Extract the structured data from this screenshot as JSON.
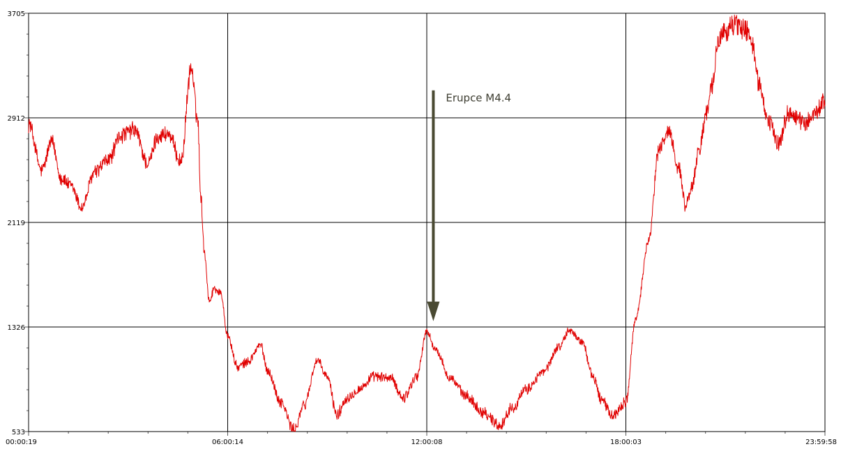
{
  "chart_data": {
    "type": "line",
    "title": "",
    "xlabel": "",
    "ylabel": "",
    "x_tick_labels": [
      "00:00:19",
      "06:00:14",
      "12:00:08",
      "18:00:03",
      "23:59:58"
    ],
    "y_tick_labels": [
      "3705",
      "2912",
      "2119",
      "1326",
      "533"
    ],
    "xlim": [
      0.0056,
      23.9994
    ],
    "ylim": [
      533,
      3705
    ],
    "grid": true,
    "legend": "none",
    "series": [
      {
        "color": "#e00000",
        "x": [
          0.0056,
          0.4,
          0.7,
          1.0,
          1.3,
          1.6,
          2.0,
          2.4,
          2.8,
          3.2,
          3.6,
          3.9,
          4.2,
          4.6,
          4.9,
          5.1,
          5.2,
          5.3,
          5.45,
          5.6,
          5.8,
          6.0,
          6.3,
          6.6,
          7.0,
          7.2,
          7.6,
          8.0,
          8.3,
          8.7,
          9.0,
          9.3,
          9.6,
          10.0,
          10.4,
          10.9,
          11.3,
          11.7,
          12.0,
          12.3,
          12.7,
          13.2,
          13.7,
          14.2,
          14.6,
          15.0,
          15.5,
          16.0,
          16.3,
          16.7,
          17.0,
          17.3,
          17.6,
          18.0,
          18.3,
          18.7,
          19.0,
          19.3,
          19.6,
          19.8,
          20.0,
          20.2,
          20.4,
          20.6,
          20.8,
          21.0,
          21.3,
          21.6,
          21.8,
          22.0,
          22.3,
          22.6,
          22.9,
          23.1,
          23.4,
          23.7,
          23.9994
        ],
        "y": [
          2870,
          2510,
          2730,
          2450,
          2390,
          2230,
          2500,
          2590,
          2780,
          2820,
          2560,
          2770,
          2790,
          2580,
          3290,
          2900,
          2300,
          1900,
          1520,
          1620,
          1580,
          1260,
          1020,
          1060,
          1190,
          1000,
          760,
          540,
          730,
          1070,
          950,
          660,
          790,
          860,
          950,
          940,
          790,
          950,
          1290,
          1140,
          940,
          800,
          680,
          580,
          720,
          850,
          980,
          1180,
          1300,
          1210,
          950,
          760,
          650,
          760,
          1390,
          2000,
          2680,
          2810,
          2530,
          2240,
          2400,
          2660,
          2920,
          3150,
          3500,
          3580,
          3620,
          3590,
          3480,
          3180,
          2880,
          2720,
          2950,
          2920,
          2870,
          2950,
          3040
        ]
      }
    ],
    "annotations": [
      {
        "text": "Erupce M4.4",
        "x": 12.2,
        "y_start": 3120,
        "y_end": 1370
      }
    ]
  }
}
